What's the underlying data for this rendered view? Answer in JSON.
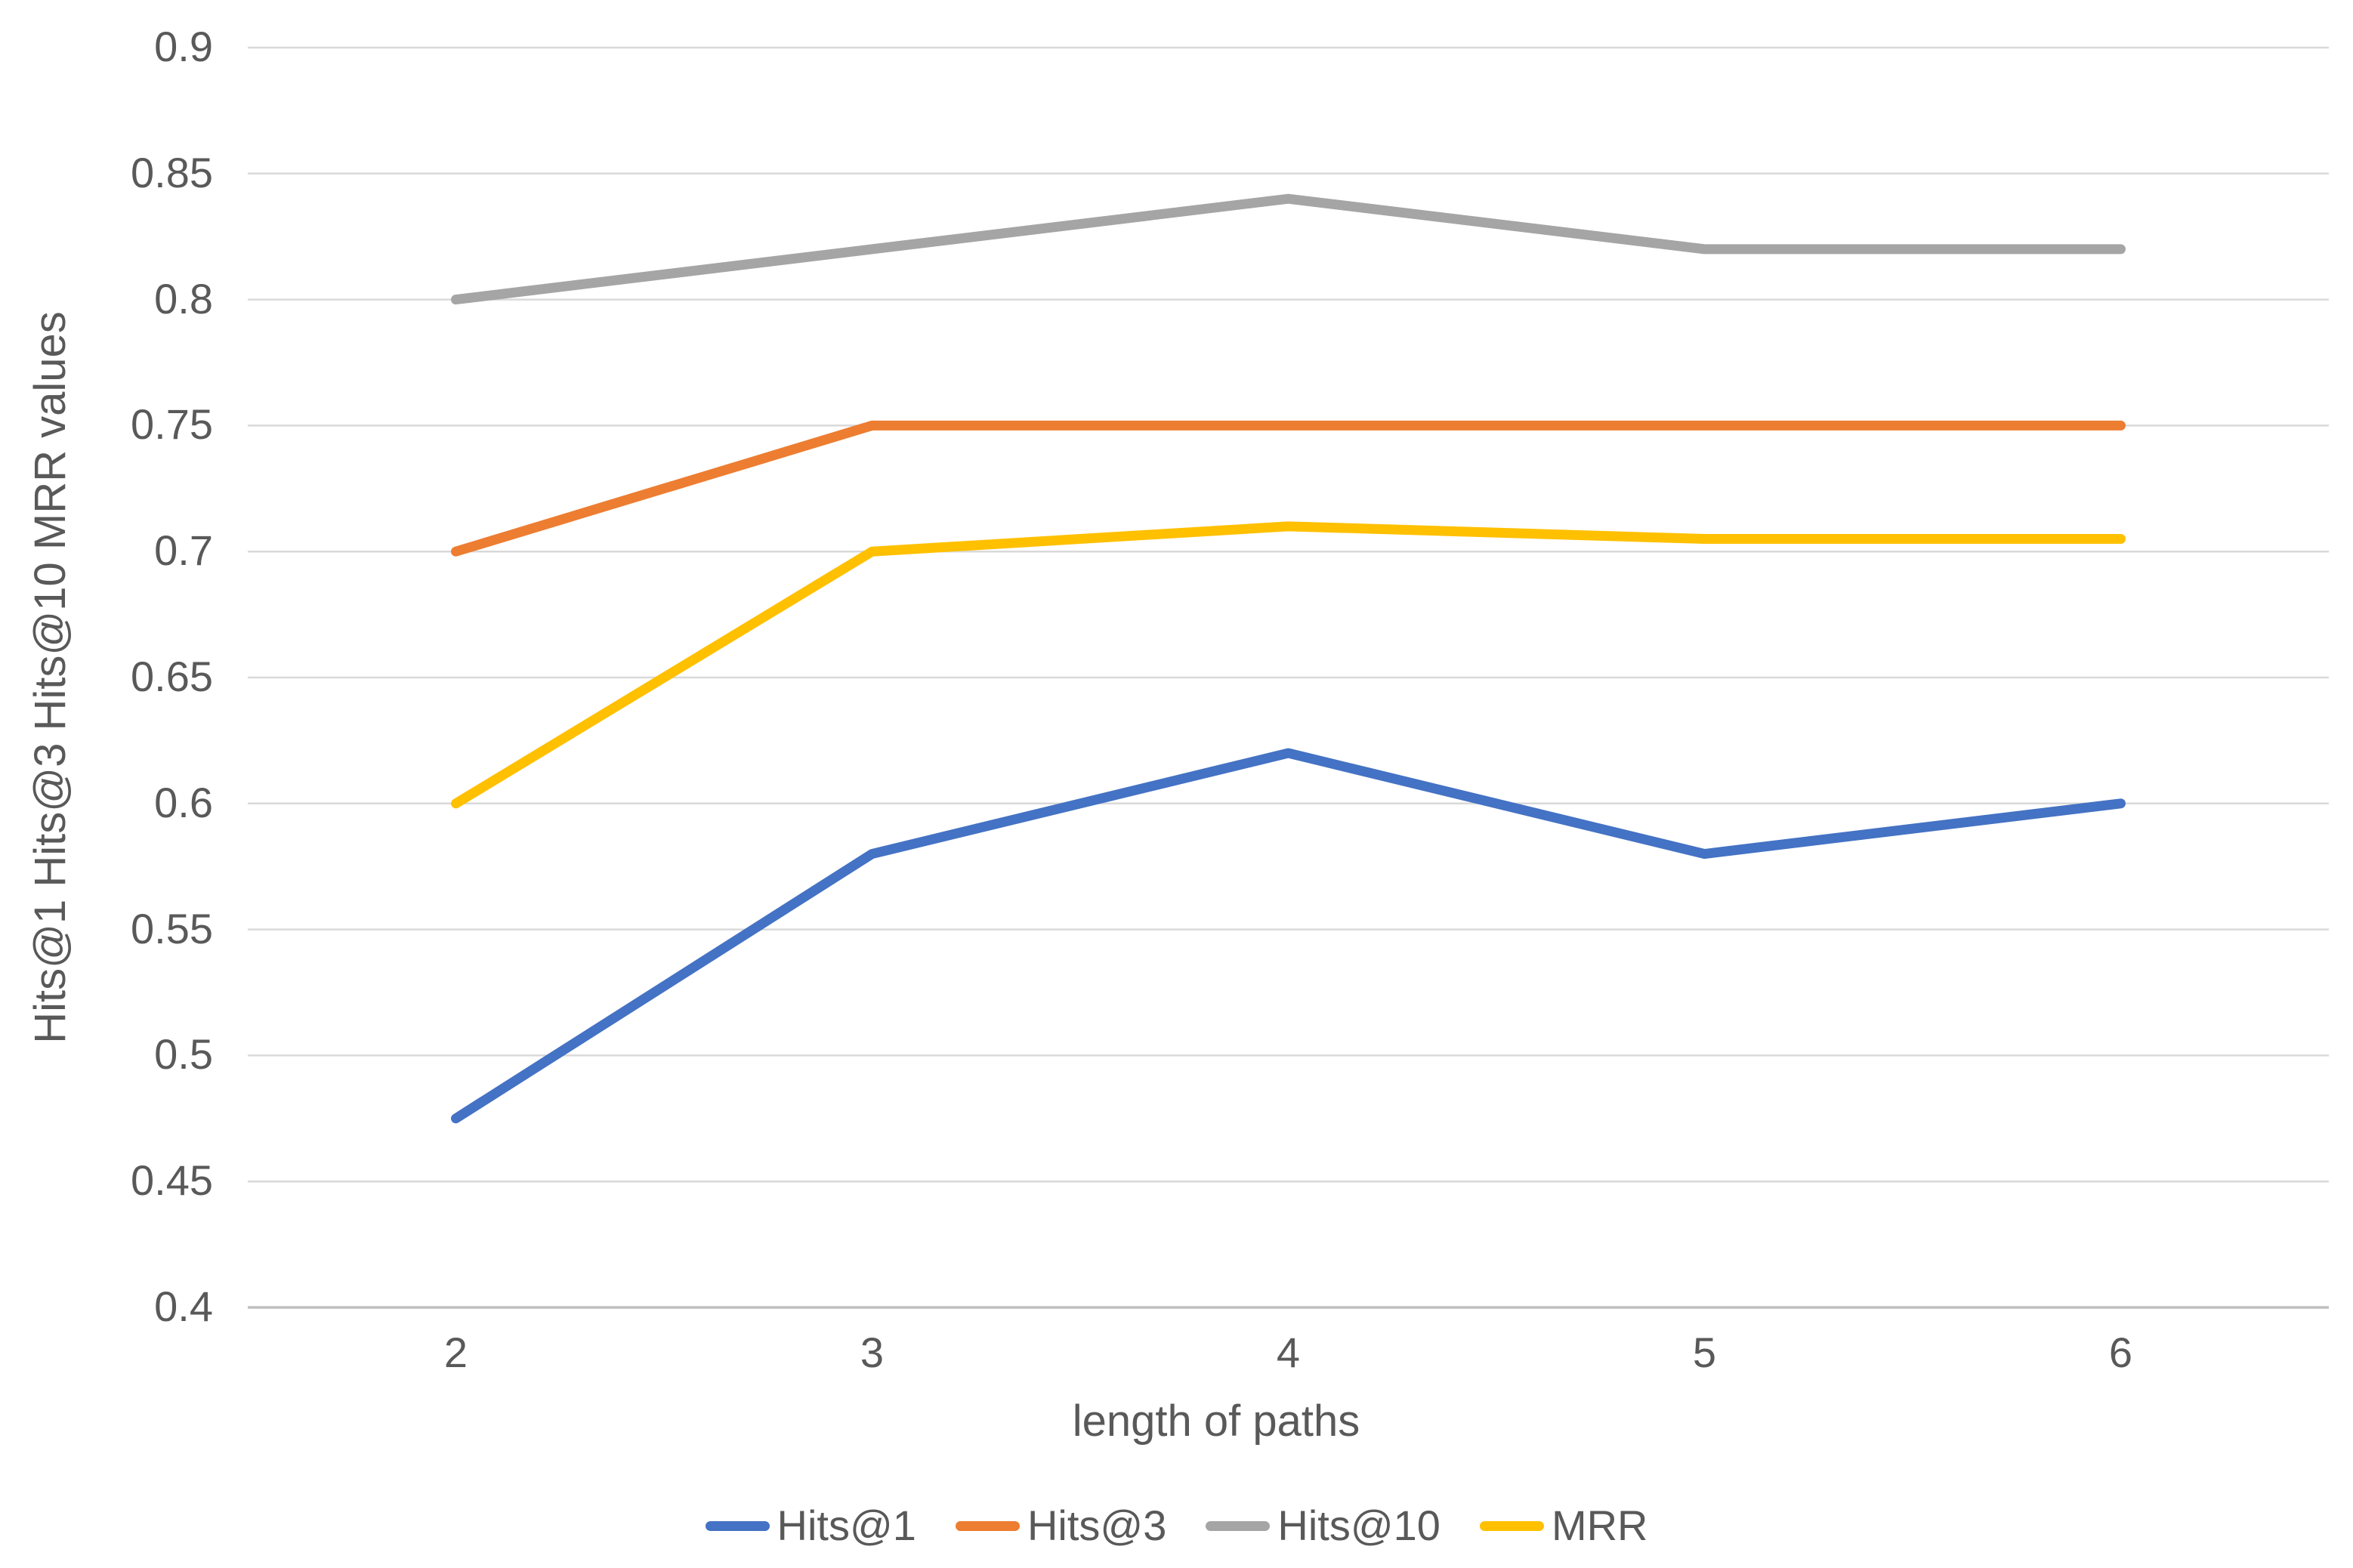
{
  "chart_data": {
    "type": "line",
    "title": "",
    "xlabel": "length of paths",
    "ylabel": "Hits@1 Hits@3 Hits@10 MRR values",
    "categories": [
      "2",
      "3",
      "4",
      "5",
      "6"
    ],
    "series": [
      {
        "name": "Hits@1",
        "color": "#4472C4",
        "values": [
          0.475,
          0.58,
          0.62,
          0.58,
          0.6
        ]
      },
      {
        "name": "Hits@3",
        "color": "#ED7D31",
        "values": [
          0.7,
          0.75,
          0.75,
          0.75,
          0.75
        ]
      },
      {
        "name": "Hits@10",
        "color": "#A5A5A5",
        "values": [
          0.8,
          0.82,
          0.84,
          0.82,
          0.82
        ]
      },
      {
        "name": "MRR",
        "color": "#FFC000",
        "values": [
          0.6,
          0.7,
          0.71,
          0.705,
          0.705
        ]
      }
    ],
    "y_axis": {
      "min": 0.4,
      "max": 0.9,
      "step": 0.05,
      "tick_labels": [
        "0.4",
        "0.45",
        "0.5",
        "0.55",
        "0.6",
        "0.65",
        "0.7",
        "0.75",
        "0.8",
        "0.85",
        "0.9"
      ]
    },
    "grid": true,
    "legend_position": "bottom",
    "colors": {
      "text": "#595959",
      "gridline": "#D9D9D9",
      "axis_line": "#BFBFBF",
      "background": "#FFFFFF"
    }
  }
}
